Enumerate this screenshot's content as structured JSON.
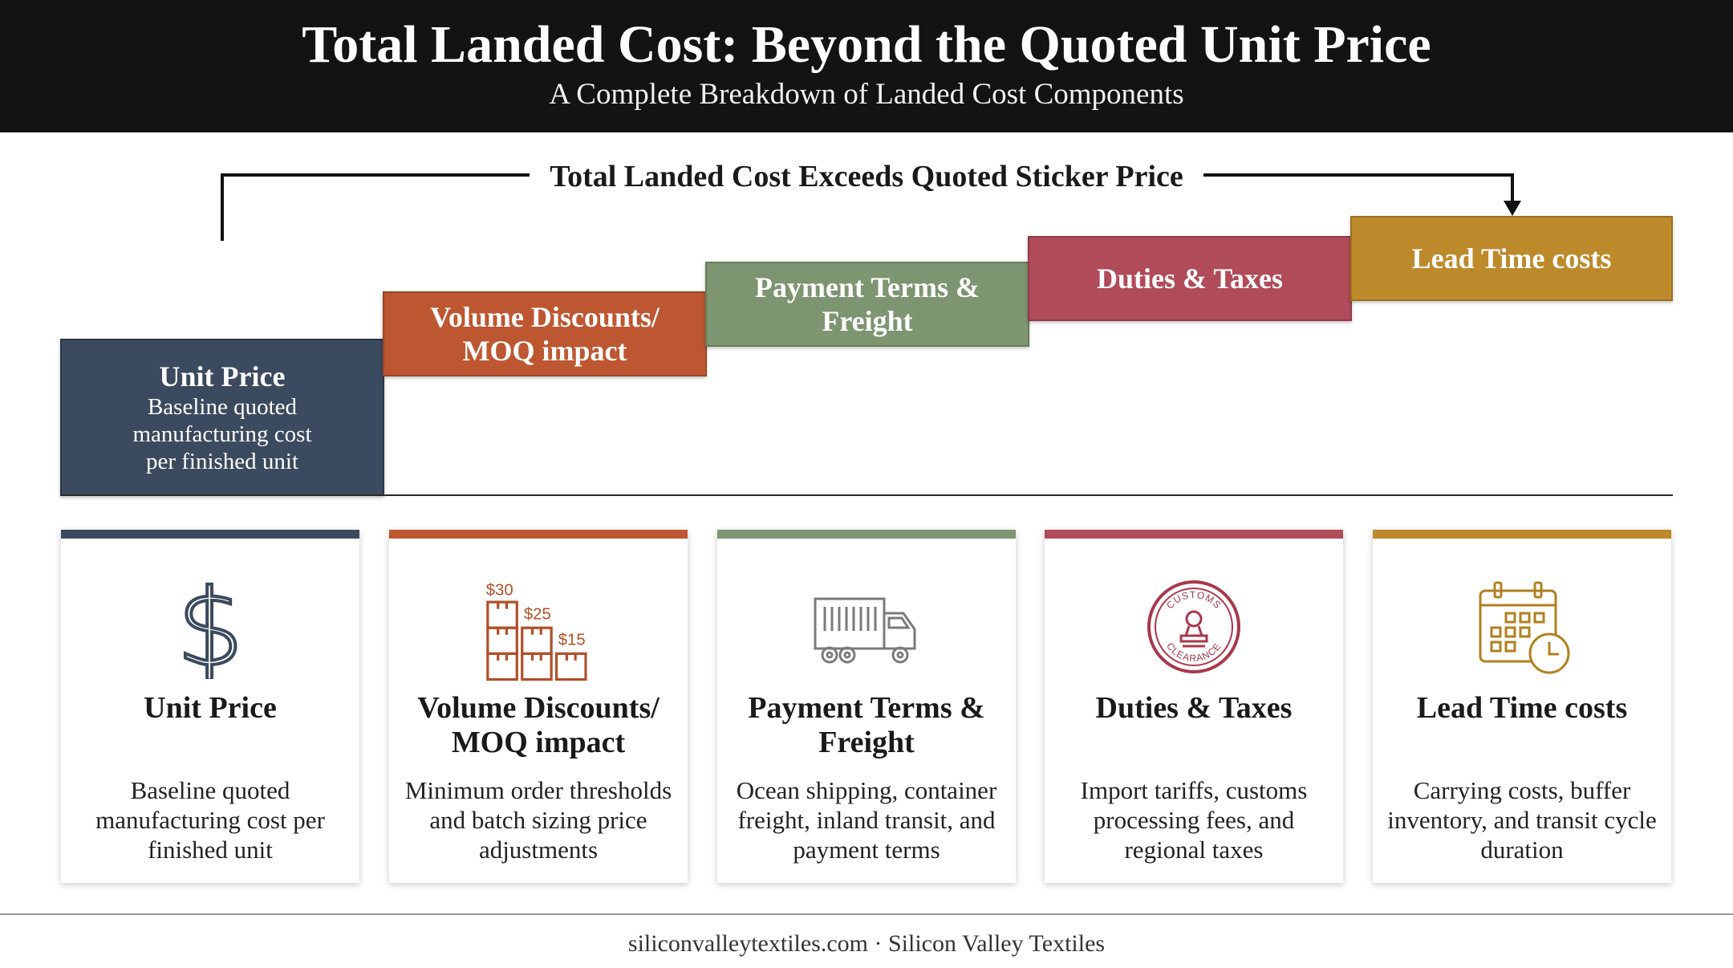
{
  "header": {
    "title": "Total Landed Cost: Beyond the Quoted Unit Price",
    "subtitle": "A Complete Breakdown of Landed Cost Components"
  },
  "bracket_label": "Total Landed Cost Exceeds Quoted Sticker Price",
  "steps": [
    {
      "title": "Unit Price",
      "desc": "Baseline quoted manufacturing cost per finished unit",
      "color": "#3b4a5e"
    },
    {
      "title": "Volume Discounts/ MOQ impact",
      "color": "#bc5731"
    },
    {
      "title": "Payment Terms & Freight",
      "color": "#7d9570"
    },
    {
      "title": "Duties & Taxes",
      "color": "#b04b59"
    },
    {
      "title": "Lead Time costs",
      "color": "#bd8a2b"
    }
  ],
  "cards": [
    {
      "icon": "dollar-sign-icon",
      "title": "Unit Price",
      "desc": "Baseline quoted manufacturing cost per finished unit"
    },
    {
      "icon": "stacked-boxes-icon",
      "title": "Volume Discounts/ MOQ impact",
      "desc": "Minimum order thresholds and batch sizing price adjustments",
      "price_tags": [
        "$30",
        "$25",
        "$15"
      ]
    },
    {
      "icon": "truck-icon",
      "title": "Payment Terms & Freight",
      "desc": "Ocean shipping, container freight, inland transit, and payment terms"
    },
    {
      "icon": "customs-stamp-icon",
      "title": "Duties & Taxes",
      "desc": "Import tariffs, customs processing fees, and regional taxes",
      "stamp_text": [
        "CUSTOMS",
        "CLEARANCE"
      ]
    },
    {
      "icon": "calendar-clock-icon",
      "title": "Lead Time costs",
      "desc": "Carrying costs, buffer inventory, and transit cycle duration"
    }
  ],
  "footer": "siliconvalleytextiles.com · Silicon Valley Textiles"
}
